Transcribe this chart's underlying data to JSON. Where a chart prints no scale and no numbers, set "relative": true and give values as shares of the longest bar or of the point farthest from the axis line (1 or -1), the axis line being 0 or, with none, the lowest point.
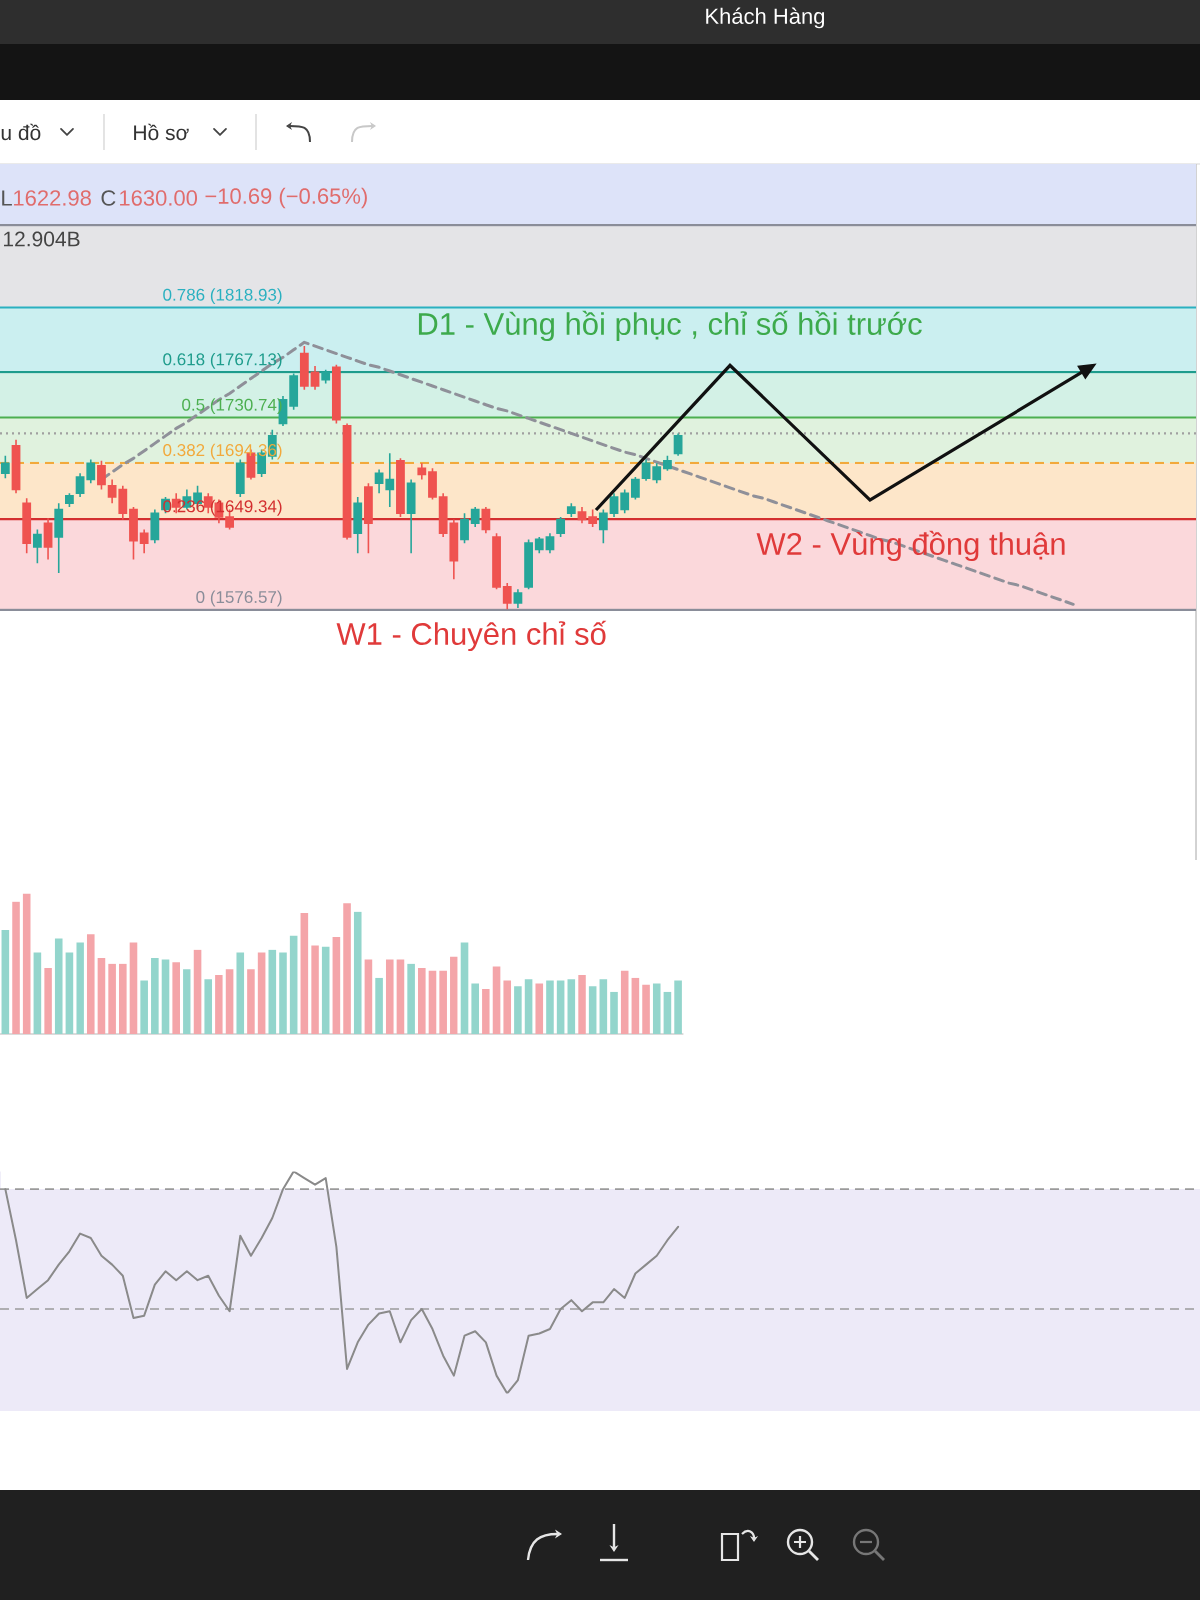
{
  "chart_data": [
    {
      "type": "candlestick",
      "categories": [
        null,
        null,
        null,
        null,
        null,
        null,
        null,
        null,
        null,
        null,
        null,
        null,
        null,
        null,
        null,
        null,
        null,
        null,
        null,
        null,
        null,
        null,
        null,
        null,
        null,
        null,
        null,
        null,
        null,
        null,
        null,
        null,
        null,
        null,
        null,
        null,
        null,
        null,
        null,
        null,
        null,
        null,
        null,
        null,
        null,
        null,
        null,
        null,
        null,
        null,
        null,
        null,
        null,
        null,
        null,
        null,
        null,
        null,
        null,
        null,
        null,
        null,
        null,
        null,
        null,
        null,
        null,
        null,
        null,
        null,
        null,
        null,
        null,
        null,
        null,
        null,
        null,
        null,
        null,
        null,
        null,
        null,
        null,
        null,
        null,
        null,
        null,
        null,
        null,
        null,
        null,
        null,
        null,
        null,
        null,
        null,
        null,
        null,
        null,
        null,
        null,
        null,
        null,
        null,
        null,
        null,
        null,
        null,
        null,
        null,
        null,
        null
      ],
      "ohlc": [
        [
          1686,
          1700,
          1682,
          1694
        ],
        [
          1708,
          1713,
          1670,
          1673
        ],
        [
          1662,
          1666,
          1622,
          1630
        ],
        [
          1627,
          1641,
          1614,
          1637
        ],
        [
          1646,
          1650,
          1617,
          1627
        ],
        [
          1635,
          1662,
          1606,
          1657
        ],
        [
          1662,
          1670,
          1659,
          1668
        ],
        [
          1670,
          1686,
          1667,
          1683
        ],
        [
          1681,
          1697,
          1678,
          1694
        ],
        [
          1692,
          1696,
          1673,
          1677
        ],
        [
          1676,
          1681,
          1662,
          1667
        ],
        [
          1673,
          1676,
          1649,
          1654
        ],
        [
          1657,
          1659,
          1617,
          1632
        ],
        [
          1638,
          1641,
          1622,
          1630
        ],
        [
          1633,
          1657,
          1630,
          1654
        ],
        [
          1657,
          1667,
          1654,
          1665
        ],
        [
          1665,
          1670,
          1654,
          1659
        ],
        [
          1659,
          1673,
          1657,
          1667
        ],
        [
          1662,
          1676,
          1657,
          1670
        ],
        [
          1667,
          1670,
          1654,
          1659
        ],
        [
          1662,
          1665,
          1646,
          1651
        ],
        [
          1651,
          1657,
          1641,
          1643
        ],
        [
          1670,
          1697,
          1667,
          1694
        ],
        [
          1702,
          1705,
          1681,
          1683
        ],
        [
          1686,
          1705,
          1683,
          1702
        ],
        [
          1700,
          1721,
          1697,
          1716
        ],
        [
          1726,
          1748,
          1724,
          1745
        ],
        [
          1740,
          1766,
          1737,
          1764
        ],
        [
          1782,
          1788,
          1753,
          1756
        ],
        [
          1767,
          1772,
          1753,
          1756
        ],
        [
          1761,
          1769,
          1758,
          1767
        ],
        [
          1771,
          1773,
          1726,
          1729
        ],
        [
          1724,
          1726,
          1633,
          1635
        ],
        [
          1638,
          1667,
          1622,
          1662
        ],
        [
          1675,
          1678,
          1622,
          1646
        ],
        [
          1678,
          1689,
          1670,
          1686
        ],
        [
          1673,
          1702,
          1659,
          1681
        ],
        [
          1696,
          1698,
          1651,
          1654
        ],
        [
          1654,
          1681,
          1622,
          1678
        ],
        [
          1690,
          1694,
          1681,
          1685
        ],
        [
          1687,
          1690,
          1665,
          1667
        ],
        [
          1667,
          1670,
          1635,
          1638
        ],
        [
          1646,
          1649,
          1601,
          1616
        ],
        [
          1633,
          1654,
          1630,
          1649
        ],
        [
          1646,
          1659,
          1643,
          1657
        ],
        [
          1657,
          1659,
          1638,
          1641
        ],
        [
          1635,
          1638,
          1593,
          1595
        ],
        [
          1595,
          1598,
          1577,
          1582
        ],
        [
          1582,
          1593,
          1578,
          1590
        ],
        [
          1595,
          1633,
          1593,
          1630
        ],
        [
          1625,
          1635,
          1622,
          1633
        ],
        [
          1625,
          1638,
          1622,
          1635
        ],
        [
          1638,
          1651,
          1635,
          1649
        ],
        [
          1654,
          1662,
          1651,
          1659
        ],
        [
          1655,
          1659,
          1646,
          1649
        ],
        [
          1651,
          1657,
          1643,
          1646
        ],
        [
          1641,
          1657,
          1630,
          1654
        ],
        [
          1654,
          1670,
          1651,
          1667
        ],
        [
          1657,
          1673,
          1654,
          1670
        ],
        [
          1667,
          1683,
          1665,
          1681
        ],
        [
          1682,
          1697,
          1680,
          1694
        ],
        [
          1681,
          1694,
          1678,
          1691
        ],
        [
          1690,
          1700,
          1688,
          1696
        ],
        [
          1702,
          1718,
          1700,
          1716
        ],
        null,
        null,
        null,
        null,
        null,
        null,
        null,
        null,
        null,
        null,
        null,
        null,
        null,
        null,
        null,
        null,
        null,
        null,
        null,
        null,
        null,
        null,
        null,
        null,
        null,
        null,
        null,
        null,
        null,
        null,
        null,
        null,
        null,
        null,
        null,
        null,
        null,
        null,
        null,
        null,
        null,
        null,
        null,
        null,
        null,
        null,
        null,
        null
      ],
      "colors": [
        "#26a69a",
        "#ef5350",
        "#ef5350",
        "#26a69a",
        "#ef5350",
        "#26a69a",
        "#26a69a",
        "#26a69a",
        "#26a69a",
        "#ef5350",
        "#ef5350",
        "#ef5350",
        "#ef5350",
        "#ef5350",
        "#26a69a",
        "#26a69a",
        "#ef5350",
        "#26a69a",
        "#26a69a",
        "#ef5350",
        "#ef5350",
        "#ef5350",
        "#26a69a",
        "#ef5350",
        "#26a69a",
        "#26a69a",
        "#26a69a",
        "#26a69a",
        "#ef5350",
        "#ef5350",
        "#26a69a",
        "#ef5350",
        "#ef5350",
        "#26a69a",
        "#ef5350",
        "#26a69a",
        "#26a69a",
        "#ef5350",
        "#26a69a",
        "#ef5350",
        "#ef5350",
        "#ef5350",
        "#ef5350",
        "#26a69a",
        "#26a69a",
        "#ef5350",
        "#ef5350",
        "#ef5350",
        "#26a69a",
        "#26a69a",
        "#26a69a",
        "#26a69a",
        "#26a69a",
        "#26a69a",
        "#ef5350",
        "#ef5350",
        "#26a69a",
        "#26a69a",
        "#26a69a",
        "#26a69a",
        "#26a69a",
        "#26a69a",
        "#26a69a",
        "#26a69a",
        null,
        null,
        null,
        null,
        null,
        null,
        null,
        null,
        null,
        null,
        null,
        null,
        null,
        null,
        null,
        null,
        null,
        null,
        null,
        null,
        null,
        null,
        null,
        null,
        null,
        null,
        null,
        null,
        null,
        null,
        null,
        null,
        null,
        null,
        null,
        null,
        null,
        null,
        null,
        null,
        null,
        null,
        null,
        null,
        null,
        null,
        null,
        null
      ],
      "series": [
        {
          "type": "line",
          "color": "#8f9099",
          "line_style": "dashed",
          "values": [
            null,
            null,
            null,
            null,
            null,
            null,
            null,
            null,
            null,
            1681,
            1687,
            1693,
            1698,
            1704,
            1710,
            1716,
            1722,
            1727,
            1733,
            1739,
            1745,
            1750,
            1756,
            1762,
            1768,
            1774,
            1779,
            1785,
            1791,
            1788,
            1785,
            1782,
            1779,
            1776,
            1773,
            1771,
            1768,
            1765,
            1762,
            1759,
            1756,
            1753,
            1750,
            1747,
            1744,
            1741,
            1738,
            1736,
            1733,
            1730,
            1727,
            1724,
            1721,
            1718,
            1715,
            1712,
            1709,
            1706,
            1703,
            1701,
            1698,
            1695,
            1692,
            1689,
            1686,
            1683,
            1680,
            1677,
            1674,
            1671,
            1668,
            1666,
            1663,
            1660,
            1657,
            1654,
            1651,
            1648,
            1645,
            1642,
            1639,
            1636,
            1633,
            1631,
            1628,
            1625,
            1622,
            1619,
            1616,
            1613,
            1610,
            1607,
            1604,
            1601,
            1598,
            1596,
            1593,
            1590,
            1587,
            1584,
            1581,
            null,
            null,
            null,
            null,
            null,
            null,
            null,
            null,
            null,
            null,
            null
          ]
        }
      ],
      "ylim": [
        1376,
        1934
      ],
      "tick_labels": false,
      "bands": [
        {
          "axis": "y",
          "from": 1884.92,
          "to": 1934,
          "color": "#dde3f9"
        },
        {
          "axis": "y",
          "from": 1818.93,
          "to": 1884.92,
          "color": "#e4e4e7"
        },
        {
          "axis": "y",
          "from": 1767.13,
          "to": 1818.93,
          "color": "#cbeff0"
        },
        {
          "axis": "y",
          "from": 1730.74,
          "to": 1767.13,
          "color": "#d3f1e6"
        },
        {
          "axis": "y",
          "from": 1694.36,
          "to": 1730.74,
          "color": "#e0f2de"
        },
        {
          "axis": "y",
          "from": 1649.34,
          "to": 1694.36,
          "color": "#fde6c9"
        },
        {
          "axis": "y",
          "from": 1576.57,
          "to": 1649.34,
          "color": "#fbd8db"
        }
      ],
      "ref_lines": [
        {
          "axis": "y",
          "value": 1884.92,
          "color": "#8a8d99"
        },
        {
          "axis": "y",
          "value": 1818.93,
          "label": "0.786 (1818.93)",
          "color": "#2ab0c0"
        },
        {
          "axis": "y",
          "value": 1767.13,
          "label": "0.618 (1767.13)",
          "color": "#1e9c8c"
        },
        {
          "axis": "y",
          "value": 1730.74,
          "label": "0.5 (1730.74)",
          "color": "#4caf50"
        },
        {
          "axis": "y",
          "value": 1694.36,
          "label": "0.382 (1694.36)",
          "color": "#f2a93b",
          "line_style": "dashed"
        },
        {
          "axis": "y",
          "value": 1649.34,
          "label": "0.236 (1649.34)",
          "color": "#d32f2f"
        },
        {
          "axis": "y",
          "value": 1576.57,
          "label": "0 (1576.57)",
          "color": "#8a8d99"
        },
        {
          "axis": "y",
          "value": 1718,
          "color": "#a0a0a0",
          "line_style": "dotted"
        }
      ],
      "annotations": [
        "Khách Hàng",
        "u đồ",
        "Hồ sơ",
        "L",
        "1622.98",
        "C",
        "1630.00",
        "−10.69 (−0.65%)",
        "12.904B",
        "D1 - Vùng hồi phục , chỉ số hồi trước",
        "W2 - Vùng đồng thuận",
        "W1 - Chuyên chỉ số"
      ]
    },
    {
      "type": "bar",
      "relative": true,
      "categories": [
        null,
        null,
        null,
        null,
        null,
        null,
        null,
        null,
        null,
        null,
        null,
        null,
        null,
        null,
        null,
        null,
        null,
        null,
        null,
        null,
        null,
        null,
        null,
        null,
        null,
        null,
        null,
        null,
        null,
        null,
        null,
        null,
        null,
        null,
        null,
        null,
        null,
        null,
        null,
        null,
        null,
        null,
        null,
        null,
        null,
        null,
        null,
        null,
        null,
        null,
        null,
        null,
        null,
        null,
        null,
        null,
        null,
        null,
        null,
        null,
        null,
        null,
        null,
        null
      ],
      "values": [
        0.74,
        0.94,
        1,
        0.58,
        0.47,
        0.68,
        0.58,
        0.65,
        0.71,
        0.54,
        0.5,
        0.5,
        0.65,
        0.38,
        0.54,
        0.53,
        0.51,
        0.46,
        0.6,
        0.39,
        0.42,
        0.46,
        0.58,
        0.46,
        0.58,
        0.6,
        0.58,
        0.7,
        0.86,
        0.63,
        0.62,
        0.69,
        0.93,
        0.87,
        0.53,
        0.4,
        0.53,
        0.53,
        0.5,
        0.47,
        0.45,
        0.45,
        0.55,
        0.65,
        0.36,
        0.32,
        0.48,
        0.38,
        0.34,
        0.39,
        0.36,
        0.38,
        0.38,
        0.39,
        0.42,
        0.34,
        0.39,
        0.3,
        0.45,
        0.4,
        0.35,
        0.36,
        0.3,
        0.38
      ],
      "colors": [
        "#93d5cc",
        "#f4a5a9",
        "#f4a5a9",
        "#93d5cc",
        "#f4a5a9",
        "#93d5cc",
        "#93d5cc",
        "#93d5cc",
        "#f4a5a9",
        "#f4a5a9",
        "#f4a5a9",
        "#f4a5a9",
        "#f4a5a9",
        "#93d5cc",
        "#93d5cc",
        "#93d5cc",
        "#f4a5a9",
        "#93d5cc",
        "#f4a5a9",
        "#93d5cc",
        "#f4a5a9",
        "#f4a5a9",
        "#93d5cc",
        "#f4a5a9",
        "#f4a5a9",
        "#93d5cc",
        "#93d5cc",
        "#93d5cc",
        "#f4a5a9",
        "#f4a5a9",
        "#93d5cc",
        "#f4a5a9",
        "#f4a5a9",
        "#93d5cc",
        "#f4a5a9",
        "#93d5cc",
        "#f4a5a9",
        "#f4a5a9",
        "#93d5cc",
        "#f4a5a9",
        "#f4a5a9",
        "#f4a5a9",
        "#f4a5a9",
        "#93d5cc",
        "#93d5cc",
        "#f4a5a9",
        "#f4a5a9",
        "#f4a5a9",
        "#93d5cc",
        "#93d5cc",
        "#f4a5a9",
        "#93d5cc",
        "#93d5cc",
        "#93d5cc",
        "#f4a5a9",
        "#93d5cc",
        "#93d5cc",
        "#93d5cc",
        "#f4a5a9",
        "#f4a5a9",
        "#f4a5a9",
        "#93d5cc",
        "#93d5cc",
        "#93d5cc"
      ],
      "tick_labels": false
    },
    {
      "type": "line",
      "relative": true,
      "categories": [
        null,
        null,
        null,
        null,
        null,
        null,
        null,
        null,
        null,
        null,
        null,
        null,
        null,
        null,
        null,
        null,
        null,
        null,
        null,
        null,
        null,
        null,
        null,
        null,
        null,
        null,
        null,
        null,
        null,
        null,
        null,
        null,
        null,
        null,
        null,
        null,
        null,
        null,
        null,
        null,
        null,
        null,
        null,
        null,
        null,
        null,
        null,
        null,
        null,
        null,
        null,
        null,
        null,
        null,
        null,
        null,
        null,
        null,
        null,
        null,
        null,
        null,
        null,
        null,
        null,
        null,
        null,
        null,
        null,
        null,
        null,
        null,
        null,
        null,
        null,
        null,
        null,
        null,
        null,
        null,
        null,
        null,
        null,
        null,
        null,
        null,
        null,
        null,
        null,
        null,
        null,
        null,
        null,
        null,
        null,
        null,
        null,
        null,
        null,
        null,
        null,
        null,
        null,
        null,
        null,
        null,
        null,
        null,
        null,
        null,
        null,
        null
      ],
      "series": [
        {
          "color": "#8a8a8a",
          "values": [
            0.92,
            0.69,
            0.43,
            0.47,
            0.51,
            0.58,
            0.64,
            0.72,
            0.7,
            0.62,
            0.58,
            0.53,
            0.34,
            0.35,
            0.49,
            0.55,
            0.51,
            0.55,
            0.51,
            0.53,
            0.44,
            0.37,
            0.71,
            0.62,
            0.7,
            0.79,
            0.92,
            1,
            0.97,
            0.94,
            0.97,
            0.66,
            0.11,
            0.23,
            0.31,
            0.36,
            0.37,
            0.23,
            0.33,
            0.38,
            0.29,
            0.17,
            0.08,
            0.26,
            0.28,
            0.23,
            0.08,
            0,
            0.06,
            0.26,
            0.27,
            0.29,
            0.38,
            0.42,
            0.37,
            0.41,
            0.41,
            0.47,
            0.43,
            0.54,
            0.58,
            0.62,
            0.69,
            0.75,
            null,
            null,
            null,
            null,
            null,
            null,
            null,
            null,
            null,
            null,
            null,
            null,
            null,
            null,
            null,
            null,
            null,
            null,
            null,
            null,
            null,
            null,
            null,
            null,
            null,
            null,
            null,
            null,
            null,
            null,
            null,
            null,
            null,
            null,
            null,
            null,
            null,
            null,
            null,
            null,
            null,
            null,
            null,
            null,
            null,
            null,
            null,
            null
          ]
        }
      ],
      "ref_lines": [
        {
          "axis": "y",
          "value": 0.92,
          "color": "#9a9a9a",
          "line_style": "dashed"
        },
        {
          "axis": "y",
          "value": 0.38,
          "color": "#9a9a9a",
          "line_style": "dashed"
        }
      ],
      "tick_labels": false
    }
  ]
}
